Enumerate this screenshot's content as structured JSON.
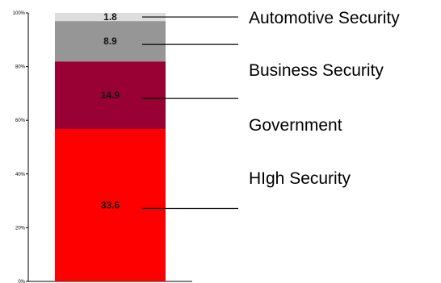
{
  "chart_data": {
    "type": "bar",
    "stacked": true,
    "percent_stacked": true,
    "categories": [
      ""
    ],
    "series": [
      {
        "name": "HIgh Security",
        "values": [
          33.6
        ],
        "label": "33.6",
        "color": "#ff0000"
      },
      {
        "name": "Government",
        "values": [
          14.9
        ],
        "label": "14.9",
        "color": "#990033"
      },
      {
        "name": "Business Security",
        "values": [
          8.9
        ],
        "label": "8.9",
        "color": "#969696"
      },
      {
        "name": "Automotive Security",
        "values": [
          1.8
        ],
        "label": "1.8",
        "color": "#dddddd"
      }
    ],
    "yticks": [
      "0%",
      "20%",
      "40%",
      "60%",
      "80%",
      "100%"
    ],
    "ylim": [
      0,
      100
    ],
    "grid": false,
    "legend": "right, leader lines"
  }
}
